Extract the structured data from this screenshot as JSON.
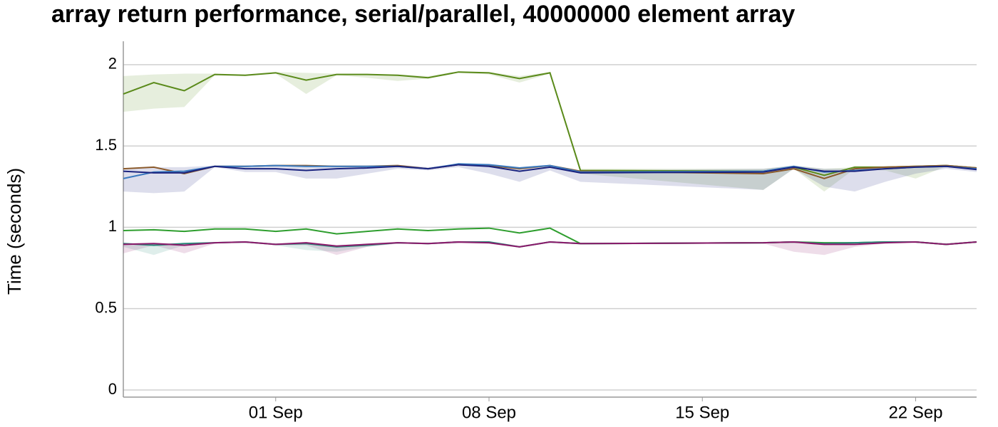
{
  "chart_data": {
    "type": "line",
    "title": "array return performance, serial/parallel, 40000000 element array",
    "y_label": "Time (seconds)",
    "x": [
      "08-27",
      "08-28",
      "08-29",
      "08-30",
      "08-31",
      "09-01",
      "09-02",
      "09-03",
      "09-04",
      "09-05",
      "09-06",
      "09-07",
      "09-08",
      "09-09",
      "09-10",
      "09-11",
      "09-17",
      "09-18",
      "09-19",
      "09-20",
      "09-21",
      "09-22",
      "09-23",
      "09-24"
    ],
    "xlim": [
      "08-27",
      "09-24"
    ],
    "xticks": [
      {
        "value": "09-01",
        "label": "01 Sep"
      },
      {
        "value": "09-08",
        "label": "08 Sep"
      },
      {
        "value": "09-15",
        "label": "15 Sep"
      },
      {
        "value": "09-22",
        "label": "22 Sep"
      }
    ],
    "ylim": [
      -0.044,
      2.144
    ],
    "yticks": [
      0,
      0.5,
      1,
      1.5,
      2
    ],
    "grid": true,
    "series": [
      {
        "color": "#5a8a1a",
        "values": [
          1.82,
          1.89,
          1.84,
          1.94,
          1.935,
          1.95,
          1.905,
          1.94,
          1.94,
          1.935,
          1.92,
          1.955,
          1.95,
          1.915,
          1.95,
          1.35,
          1.345,
          1.37,
          1.32,
          1.37,
          1.37,
          1.375,
          1.38,
          1.365
        ],
        "band_high": [
          1.93,
          1.94,
          1.945,
          1.945,
          1.94,
          1.955,
          1.95,
          1.945,
          1.94,
          1.94,
          1.93,
          1.96,
          1.955,
          1.93,
          1.955,
          1.36,
          1.36,
          1.38,
          1.36,
          1.37,
          1.375,
          1.38,
          1.385,
          1.37
        ],
        "band_low": [
          1.71,
          1.73,
          1.74,
          1.935,
          1.93,
          1.945,
          1.82,
          1.935,
          1.92,
          1.9,
          1.915,
          1.95,
          1.94,
          1.89,
          1.945,
          1.33,
          1.23,
          1.36,
          1.22,
          1.36,
          1.35,
          1.3,
          1.375,
          1.36
        ]
      },
      {
        "color": "#8b5a2b",
        "values": [
          1.36,
          1.37,
          1.33,
          1.375,
          1.375,
          1.38,
          1.38,
          1.375,
          1.375,
          1.38,
          1.36,
          1.385,
          1.38,
          1.36,
          1.38,
          1.345,
          1.33,
          1.36,
          1.3,
          1.36,
          1.37,
          1.375,
          1.38,
          1.365
        ]
      },
      {
        "color": "#3a7abf",
        "values": [
          1.3,
          1.34,
          1.345,
          1.375,
          1.375,
          1.38,
          1.375,
          1.375,
          1.375,
          1.375,
          1.36,
          1.39,
          1.385,
          1.365,
          1.38,
          1.34,
          1.345,
          1.375,
          1.34,
          1.35,
          1.36,
          1.37,
          1.375,
          1.36
        ]
      },
      {
        "color": "#1a237e",
        "values": [
          1.345,
          1.335,
          1.335,
          1.375,
          1.36,
          1.36,
          1.35,
          1.36,
          1.365,
          1.375,
          1.36,
          1.385,
          1.375,
          1.345,
          1.37,
          1.335,
          1.34,
          1.37,
          1.345,
          1.345,
          1.36,
          1.37,
          1.375,
          1.355
        ],
        "band_high": [
          1.36,
          1.37,
          1.37,
          1.38,
          1.38,
          1.385,
          1.38,
          1.38,
          1.38,
          1.385,
          1.37,
          1.39,
          1.39,
          1.37,
          1.385,
          1.35,
          1.36,
          1.38,
          1.36,
          1.36,
          1.37,
          1.375,
          1.385,
          1.37
        ],
        "band_low": [
          1.22,
          1.21,
          1.22,
          1.37,
          1.34,
          1.34,
          1.3,
          1.3,
          1.33,
          1.36,
          1.35,
          1.37,
          1.33,
          1.28,
          1.35,
          1.28,
          1.23,
          1.36,
          1.25,
          1.22,
          1.28,
          1.33,
          1.36,
          1.34
        ]
      },
      {
        "color": "#2e9e2e",
        "values": [
          0.98,
          0.985,
          0.975,
          0.99,
          0.99,
          0.975,
          0.99,
          0.96,
          0.975,
          0.99,
          0.98,
          0.99,
          0.995,
          0.965,
          0.995,
          0.9,
          0.905,
          0.91,
          0.905,
          0.905,
          0.91,
          0.91,
          0.895,
          0.91
        ]
      },
      {
        "color": "#2a8a7a",
        "values": [
          0.9,
          0.89,
          0.9,
          0.905,
          0.91,
          0.895,
          0.9,
          0.88,
          0.89,
          0.905,
          0.9,
          0.91,
          0.91,
          0.88,
          0.91,
          0.9,
          0.905,
          0.91,
          0.9,
          0.905,
          0.91,
          0.91,
          0.895,
          0.91
        ],
        "band_high": [
          0.905,
          0.9,
          0.905,
          0.91,
          0.915,
          0.9,
          0.905,
          0.89,
          0.9,
          0.91,
          0.905,
          0.915,
          0.915,
          0.885,
          0.915,
          0.905,
          0.91,
          0.915,
          0.905,
          0.91,
          0.915,
          0.915,
          0.9,
          0.915
        ],
        "band_low": [
          0.88,
          0.83,
          0.89,
          0.9,
          0.905,
          0.89,
          0.86,
          0.85,
          0.88,
          0.9,
          0.895,
          0.905,
          0.9,
          0.875,
          0.905,
          0.895,
          0.9,
          0.905,
          0.89,
          0.9,
          0.905,
          0.905,
          0.89,
          0.905
        ]
      },
      {
        "color": "#8b1a6b",
        "values": [
          0.895,
          0.9,
          0.89,
          0.905,
          0.91,
          0.895,
          0.905,
          0.885,
          0.895,
          0.905,
          0.9,
          0.91,
          0.905,
          0.88,
          0.91,
          0.9,
          0.905,
          0.91,
          0.895,
          0.895,
          0.905,
          0.91,
          0.895,
          0.91
        ],
        "band_high": [
          0.9,
          0.905,
          0.9,
          0.91,
          0.915,
          0.9,
          0.91,
          0.89,
          0.9,
          0.91,
          0.905,
          0.915,
          0.91,
          0.885,
          0.915,
          0.905,
          0.91,
          0.915,
          0.905,
          0.905,
          0.91,
          0.915,
          0.9,
          0.915
        ],
        "band_low": [
          0.84,
          0.89,
          0.84,
          0.9,
          0.905,
          0.89,
          0.89,
          0.83,
          0.88,
          0.9,
          0.895,
          0.9,
          0.9,
          0.875,
          0.905,
          0.895,
          0.9,
          0.85,
          0.83,
          0.88,
          0.9,
          0.905,
          0.89,
          0.905
        ]
      }
    ]
  }
}
